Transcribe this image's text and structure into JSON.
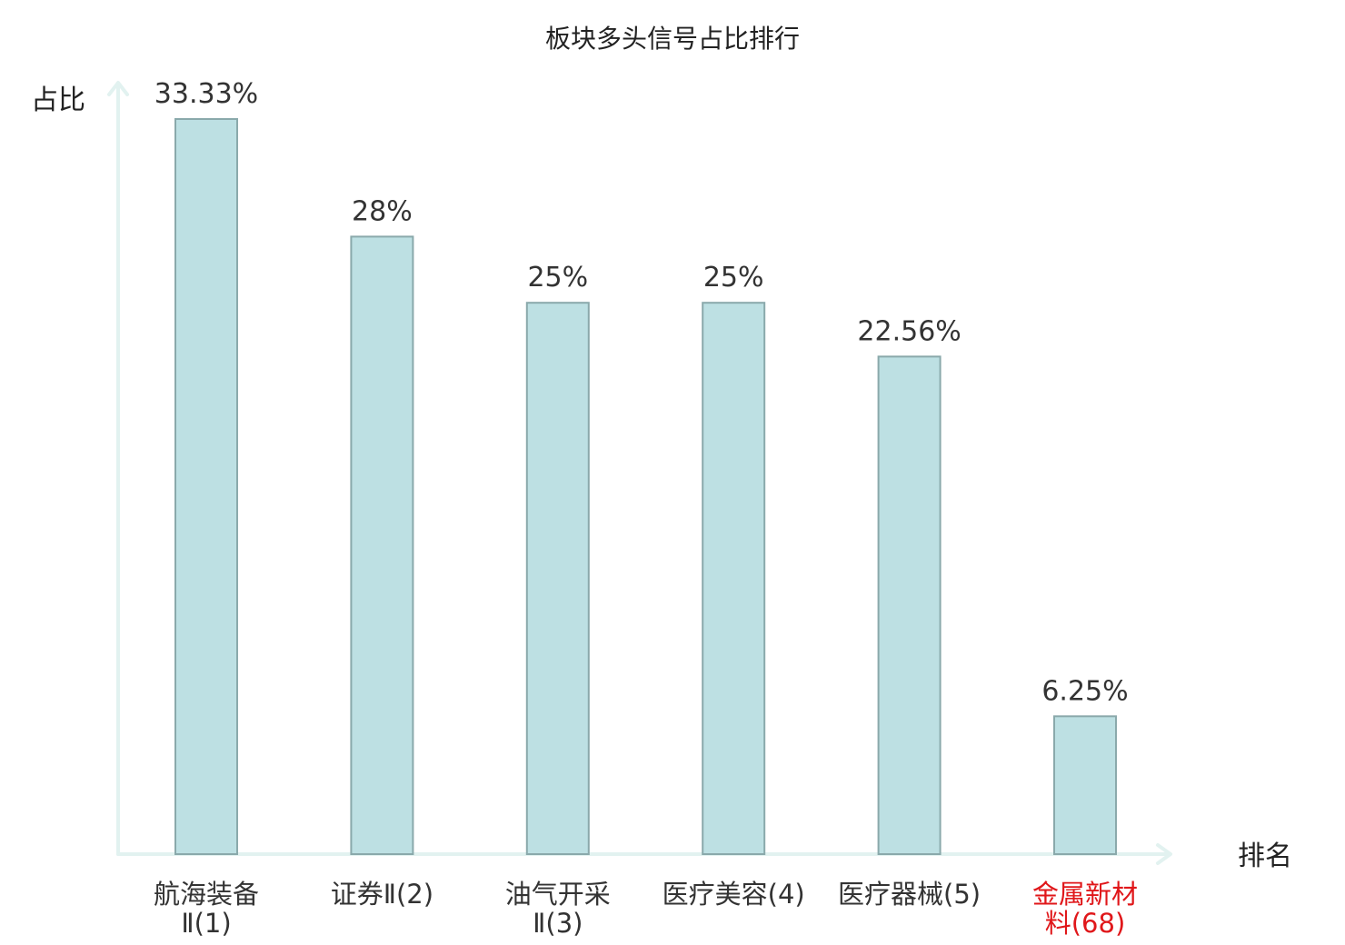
{
  "chart_data": {
    "type": "bar",
    "title": "板块多头信号占比排行",
    "xlabel": "排名",
    "ylabel": "占比",
    "categories": [
      [
        "航海装备",
        "Ⅱ(1)"
      ],
      [
        "证券Ⅱ(2)"
      ],
      [
        "油气开采",
        "Ⅱ(3)"
      ],
      [
        "医疗美容(4)"
      ],
      [
        "医疗器械(5)"
      ],
      [
        "金属新材",
        "料(68)"
      ]
    ],
    "values": [
      33.33,
      28,
      25,
      25,
      22.56,
      6.25
    ],
    "value_labels": [
      "33.33%",
      "28%",
      "25%",
      "25%",
      "22.56%",
      "6.25%"
    ],
    "highlight_index": 5,
    "ylim": [
      0,
      33.33
    ],
    "grid": false,
    "colors": {
      "bar_fill": "#bde0e3",
      "bar_stroke": "#8aa9ab",
      "axis": "#e2f2f0",
      "highlight_text": "#e0171a"
    }
  }
}
